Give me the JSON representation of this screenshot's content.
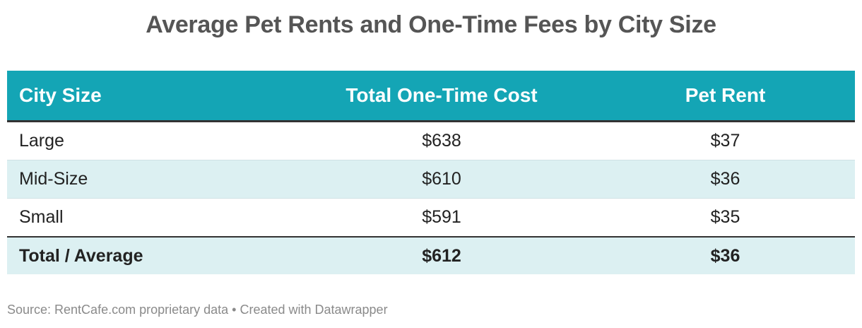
{
  "title": "Average Pet Rents and One-Time Fees by City Size",
  "table": {
    "headers": [
      "City Size",
      "Total One-Time Cost",
      "Pet Rent"
    ],
    "rows": [
      [
        "Large",
        "$638",
        "$37"
      ],
      [
        "Mid-Size",
        "$610",
        "$36"
      ],
      [
        "Small",
        "$591",
        "$35"
      ]
    ],
    "total": [
      "Total / Average",
      "$612",
      "$36"
    ]
  },
  "footer": "Source: RentCafe.com proprietary data • Created with Datawrapper",
  "colors": {
    "header_bg": "#14a5b5",
    "alt_row_bg": "#dcf0f2",
    "title": "#555555"
  },
  "chart_data": {
    "type": "table",
    "title": "Average Pet Rents and One-Time Fees by City Size",
    "columns": [
      "City Size",
      "Total One-Time Cost",
      "Pet Rent"
    ],
    "categories": [
      "Large",
      "Mid-Size",
      "Small",
      "Total / Average"
    ],
    "series": [
      {
        "name": "Total One-Time Cost",
        "values": [
          638,
          610,
          591,
          612
        ]
      },
      {
        "name": "Pet Rent",
        "values": [
          37,
          36,
          35,
          36
        ]
      }
    ],
    "units": "USD",
    "source": "Source: RentCafe.com proprietary data • Created with Datawrapper"
  }
}
